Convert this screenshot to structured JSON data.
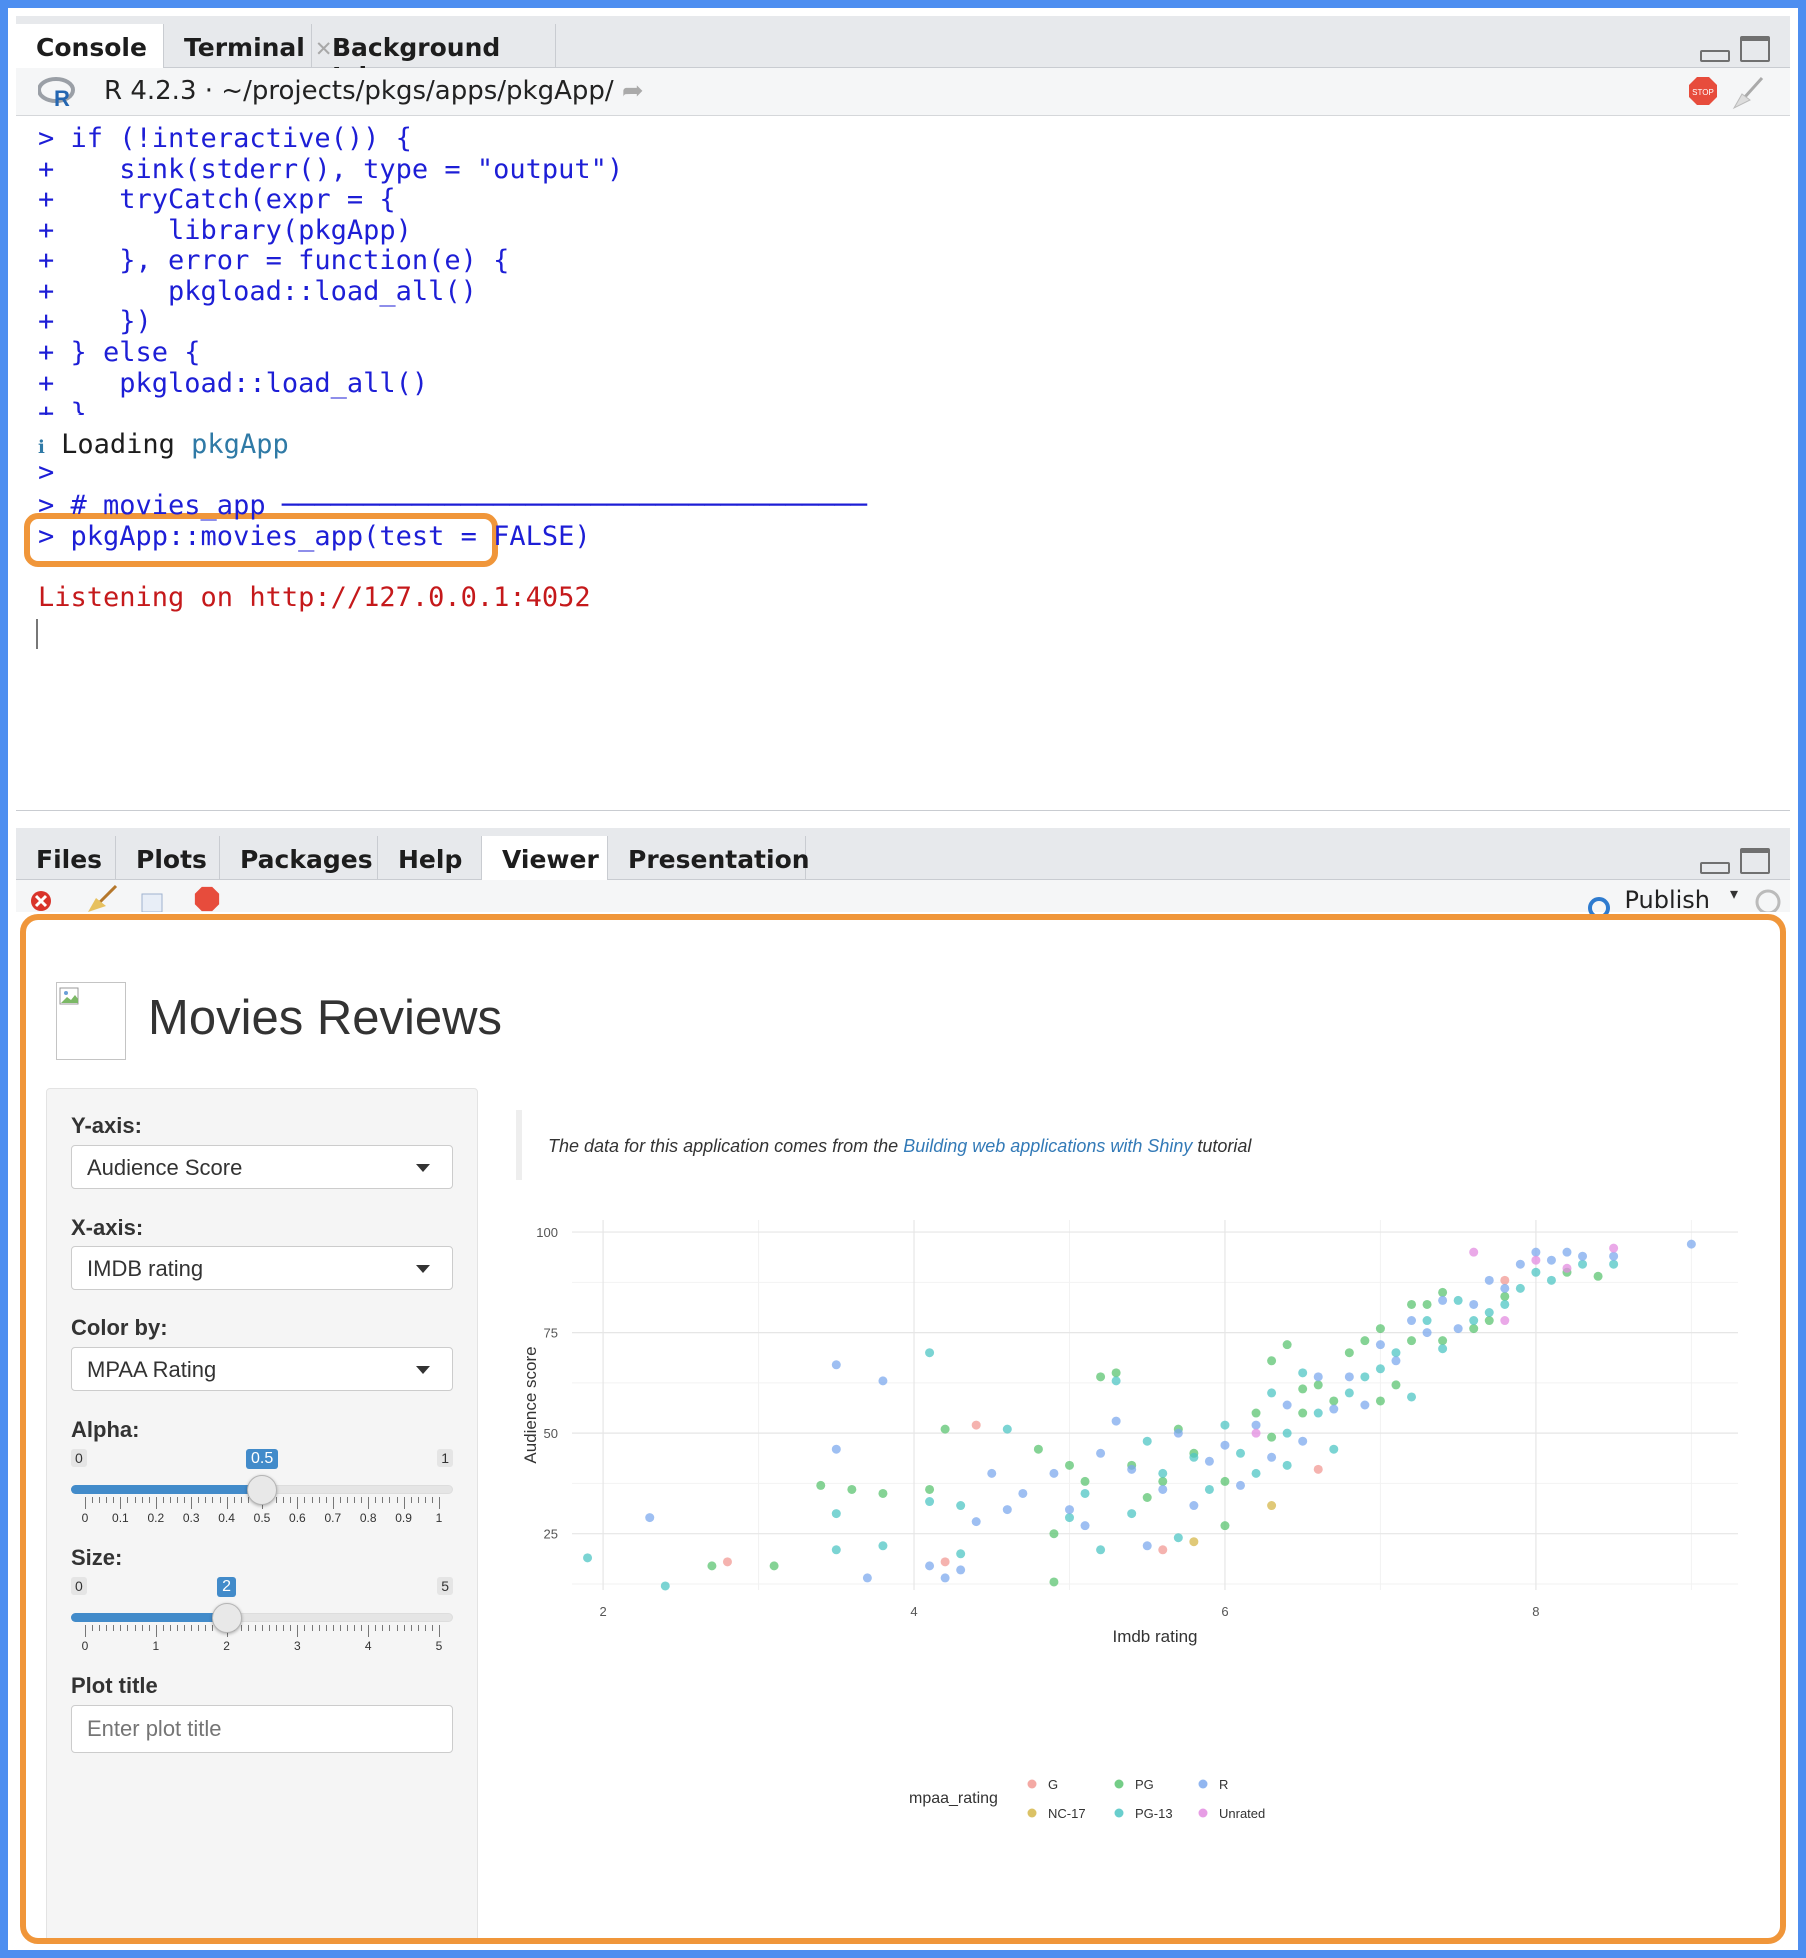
{
  "console_tabs": [
    {
      "label": "Console",
      "closable": false,
      "active": true
    },
    {
      "label": "Terminal",
      "closable": true,
      "active": false
    },
    {
      "label": "Background Jobs",
      "closable": true,
      "active": false
    }
  ],
  "console_header": {
    "version": "R 4.2.3",
    "sep": "·",
    "path": "~/projects/pkgs/apps/pkgApp/"
  },
  "console_lines": [
    {
      "text": "> if (!interactive()) {",
      "cls": "blue"
    },
    {
      "text": "+    sink(stderr(), type = \"output\")",
      "cls": "blue"
    },
    {
      "text": "+    tryCatch(expr = {",
      "cls": "blue"
    },
    {
      "text": "+       library(pkgApp)",
      "cls": "blue"
    },
    {
      "text": "+    }, error = function(e) {",
      "cls": "blue"
    },
    {
      "text": "+       pkgload::load_all()",
      "cls": "blue"
    },
    {
      "text": "+    })",
      "cls": "blue"
    },
    {
      "text": "+ } else {",
      "cls": "blue"
    },
    {
      "text": "+    pkgload::load_all()",
      "cls": "blue"
    },
    {
      "text": "+ }",
      "cls": "blue"
    }
  ],
  "loading": {
    "icon": "ℹ",
    "text": "Loading",
    "pkg": "pkgApp"
  },
  "console_lines2": [
    {
      "text": ">",
      "cls": "blue"
    },
    {
      "text": "> # movies_app ────────────────────────────────────",
      "cls": "blue"
    },
    {
      "text": "> pkgApp::movies_app(test = FALSE)",
      "cls": "blue"
    },
    {
      "text": "",
      "cls": "blue"
    },
    {
      "text": "Listening on http://127.0.0.1:4052",
      "cls": "red"
    }
  ],
  "viewer_tabs": [
    {
      "label": "Files",
      "active": false
    },
    {
      "label": "Plots",
      "active": false
    },
    {
      "label": "Packages",
      "active": false
    },
    {
      "label": "Help",
      "active": false
    },
    {
      "label": "Viewer",
      "active": true
    },
    {
      "label": "Presentation",
      "active": false
    }
  ],
  "viewer_toolbar": {
    "publish_label": "Publish"
  },
  "app": {
    "title": "Movies Reviews",
    "y_axis": {
      "label": "Y-axis:",
      "value": "Audience Score"
    },
    "x_axis": {
      "label": "X-axis:",
      "value": "IMDB rating"
    },
    "color_by": {
      "label": "Color by:",
      "value": "MPAA Rating"
    },
    "alpha": {
      "label": "Alpha:",
      "min": "0",
      "max": "1",
      "value": "0.5",
      "fraction": 0.5,
      "ticks": [
        "0",
        "0.1",
        "0.2",
        "0.3",
        "0.4",
        "0.5",
        "0.6",
        "0.7",
        "0.8",
        "0.9",
        "1"
      ]
    },
    "size": {
      "label": "Size:",
      "min": "0",
      "max": "5",
      "value": "2",
      "fraction": 0.4,
      "ticks": [
        "0",
        "1",
        "2",
        "3",
        "4",
        "5"
      ]
    },
    "plot_title": {
      "label": "Plot title",
      "placeholder": "Enter plot title"
    },
    "note": {
      "prefix": "The data for this application comes from the",
      "link": "Building web applications with Shiny",
      "suffix": "tutorial"
    }
  },
  "chart_data": {
    "type": "scatter",
    "title": "",
    "xlabel": "Imdb rating",
    "ylabel": "Audience score",
    "xlim": [
      1.8,
      9.3
    ],
    "ylim": [
      11,
      103
    ],
    "x_ticks": [
      "2",
      "4",
      "6",
      "8"
    ],
    "y_ticks": [
      "25",
      "50",
      "75",
      "100"
    ],
    "grid": true,
    "legend_title": "mpaa_rating",
    "legend_position": "bottom",
    "series": [
      {
        "name": "G",
        "color": "#f29a94",
        "points": [
          [
            2.8,
            18
          ],
          [
            4.4,
            52
          ],
          [
            4.2,
            18
          ],
          [
            5.6,
            21
          ],
          [
            6.6,
            41
          ],
          [
            7.8,
            88
          ]
        ]
      },
      {
        "name": "NC-17",
        "color": "#d5b74b",
        "points": [
          [
            5.8,
            23
          ],
          [
            6.3,
            32
          ]
        ]
      },
      {
        "name": "PG",
        "color": "#5cc472",
        "points": [
          [
            2.7,
            17
          ],
          [
            3.1,
            17
          ],
          [
            3.4,
            37
          ],
          [
            3.6,
            36
          ],
          [
            3.8,
            35
          ],
          [
            4.1,
            36
          ],
          [
            4.2,
            51
          ],
          [
            4.8,
            46
          ],
          [
            4.9,
            25
          ],
          [
            4.9,
            13
          ],
          [
            5.0,
            42
          ],
          [
            5.1,
            38
          ],
          [
            5.2,
            64
          ],
          [
            5.3,
            65
          ],
          [
            5.4,
            42
          ],
          [
            5.5,
            34
          ],
          [
            5.6,
            38
          ],
          [
            5.7,
            51
          ],
          [
            5.8,
            45
          ],
          [
            6.0,
            38
          ],
          [
            6.0,
            27
          ],
          [
            6.2,
            55
          ],
          [
            6.3,
            68
          ],
          [
            6.3,
            49
          ],
          [
            6.4,
            72
          ],
          [
            6.5,
            61
          ],
          [
            6.5,
            55
          ],
          [
            6.6,
            62
          ],
          [
            6.7,
            58
          ],
          [
            6.8,
            70
          ],
          [
            6.9,
            73
          ],
          [
            7.0,
            58
          ],
          [
            7.0,
            76
          ],
          [
            7.1,
            62
          ],
          [
            7.2,
            82
          ],
          [
            7.2,
            73
          ],
          [
            7.3,
            82
          ],
          [
            7.4,
            85
          ],
          [
            7.4,
            73
          ],
          [
            7.6,
            76
          ],
          [
            7.7,
            78
          ],
          [
            7.8,
            84
          ],
          [
            8.2,
            90
          ],
          [
            8.4,
            89
          ]
        ]
      },
      {
        "name": "PG-13",
        "color": "#4fc6c4",
        "points": [
          [
            1.9,
            19
          ],
          [
            2.4,
            12
          ],
          [
            3.5,
            30
          ],
          [
            3.5,
            21
          ],
          [
            3.8,
            22
          ],
          [
            4.1,
            70
          ],
          [
            4.1,
            33
          ],
          [
            4.3,
            32
          ],
          [
            4.3,
            20
          ],
          [
            4.6,
            51
          ],
          [
            5.0,
            29
          ],
          [
            5.1,
            35
          ],
          [
            5.2,
            21
          ],
          [
            5.3,
            63
          ],
          [
            5.4,
            30
          ],
          [
            5.5,
            48
          ],
          [
            5.6,
            40
          ],
          [
            5.7,
            24
          ],
          [
            5.8,
            44
          ],
          [
            5.9,
            36
          ],
          [
            6.0,
            52
          ],
          [
            6.1,
            45
          ],
          [
            6.2,
            40
          ],
          [
            6.3,
            60
          ],
          [
            6.4,
            50
          ],
          [
            6.4,
            42
          ],
          [
            6.5,
            65
          ],
          [
            6.6,
            55
          ],
          [
            6.7,
            46
          ],
          [
            6.8,
            60
          ],
          [
            6.9,
            64
          ],
          [
            7.0,
            66
          ],
          [
            7.1,
            70
          ],
          [
            7.2,
            59
          ],
          [
            7.3,
            78
          ],
          [
            7.4,
            71
          ],
          [
            7.5,
            83
          ],
          [
            7.6,
            78
          ],
          [
            7.7,
            80
          ],
          [
            7.8,
            82
          ],
          [
            7.9,
            86
          ],
          [
            8.0,
            90
          ],
          [
            8.1,
            88
          ],
          [
            8.3,
            92
          ],
          [
            8.5,
            92
          ]
        ]
      },
      {
        "name": "R",
        "color": "#7ea9ed",
        "points": [
          [
            2.3,
            29
          ],
          [
            3.5,
            46
          ],
          [
            3.5,
            67
          ],
          [
            3.7,
            14
          ],
          [
            3.8,
            63
          ],
          [
            4.1,
            17
          ],
          [
            4.2,
            14
          ],
          [
            4.3,
            16
          ],
          [
            4.4,
            28
          ],
          [
            4.5,
            40
          ],
          [
            4.6,
            31
          ],
          [
            4.7,
            35
          ],
          [
            4.9,
            40
          ],
          [
            5.0,
            31
          ],
          [
            5.1,
            27
          ],
          [
            5.2,
            45
          ],
          [
            5.3,
            53
          ],
          [
            5.4,
            41
          ],
          [
            5.5,
            22
          ],
          [
            5.6,
            36
          ],
          [
            5.7,
            50
          ],
          [
            5.8,
            32
          ],
          [
            5.9,
            43
          ],
          [
            6.0,
            47
          ],
          [
            6.1,
            37
          ],
          [
            6.2,
            52
          ],
          [
            6.3,
            44
          ],
          [
            6.4,
            57
          ],
          [
            6.5,
            48
          ],
          [
            6.6,
            64
          ],
          [
            6.7,
            56
          ],
          [
            6.8,
            64
          ],
          [
            6.9,
            57
          ],
          [
            7.0,
            72
          ],
          [
            7.1,
            68
          ],
          [
            7.2,
            78
          ],
          [
            7.3,
            75
          ],
          [
            7.4,
            83
          ],
          [
            7.5,
            76
          ],
          [
            7.6,
            82
          ],
          [
            7.7,
            88
          ],
          [
            7.8,
            86
          ],
          [
            7.9,
            92
          ],
          [
            8.0,
            95
          ],
          [
            8.1,
            93
          ],
          [
            8.2,
            95
          ],
          [
            8.3,
            94
          ],
          [
            8.5,
            94
          ],
          [
            9.0,
            97
          ]
        ]
      },
      {
        "name": "Unrated",
        "color": "#e38ce0",
        "points": [
          [
            6.2,
            50
          ],
          [
            7.6,
            95
          ],
          [
            7.8,
            78
          ],
          [
            8.0,
            93
          ],
          [
            8.2,
            91
          ],
          [
            8.5,
            96
          ]
        ]
      }
    ]
  }
}
